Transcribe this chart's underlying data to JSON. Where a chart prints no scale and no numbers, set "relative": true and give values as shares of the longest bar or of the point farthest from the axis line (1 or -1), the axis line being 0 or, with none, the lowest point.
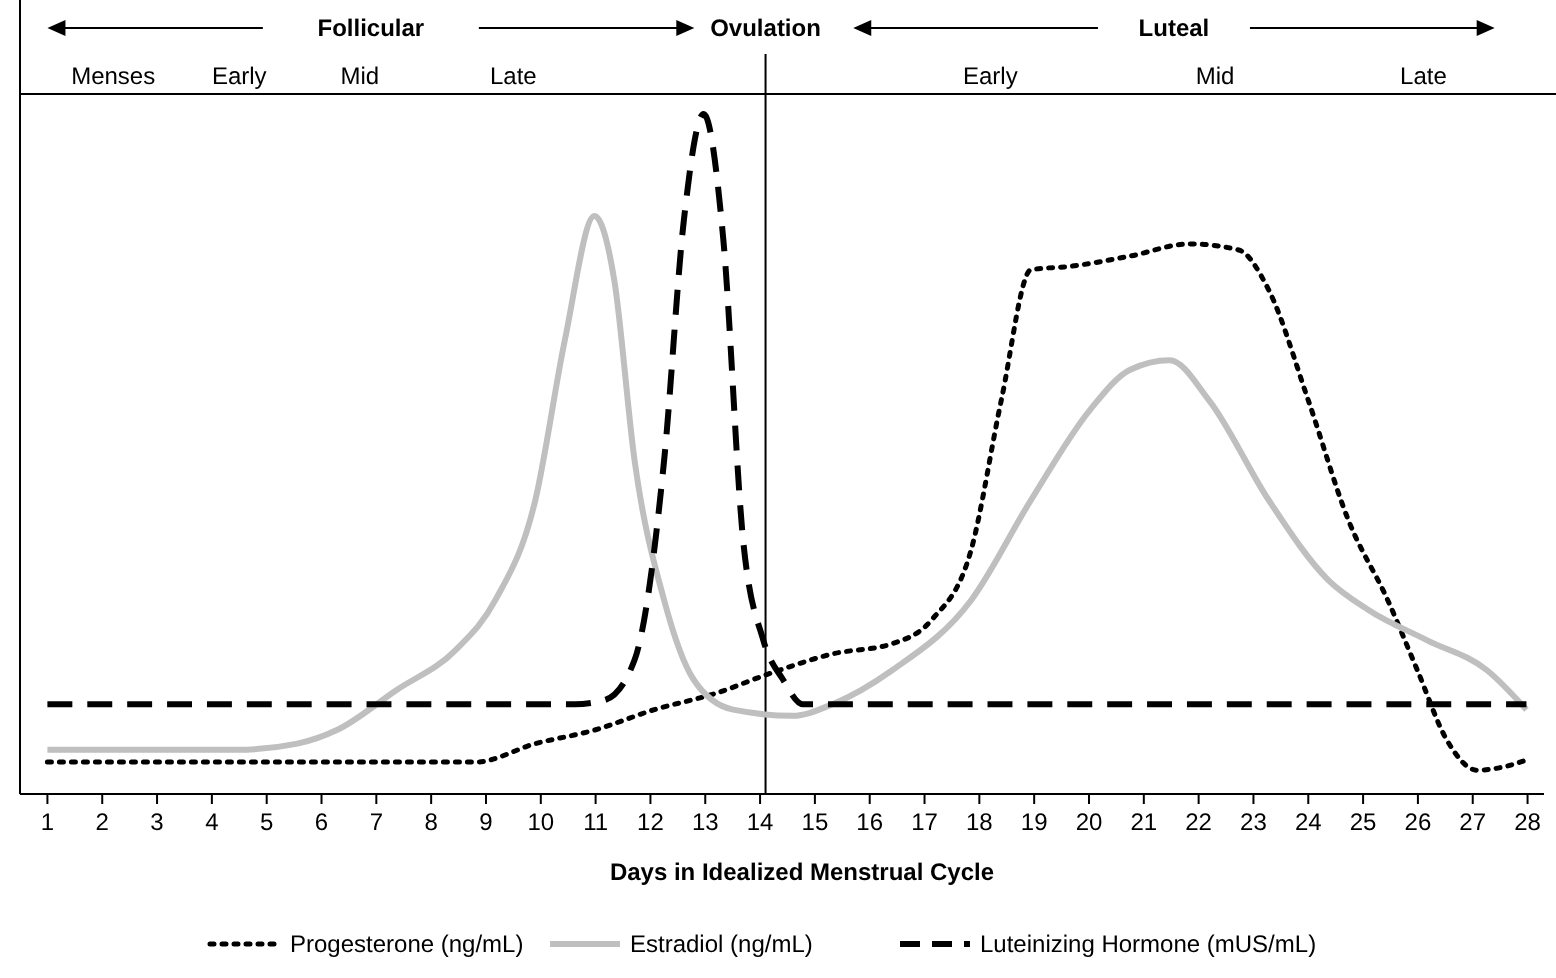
{
  "chart_data": {
    "type": "line",
    "relative": true,
    "xlabel": "Days in Idealized Menstrual Cycle",
    "xlim": [
      0.5,
      28.3
    ],
    "xticks": [
      1,
      2,
      3,
      4,
      5,
      6,
      7,
      8,
      9,
      10,
      11,
      12,
      13,
      14,
      15,
      16,
      17,
      18,
      19,
      20,
      21,
      22,
      23,
      24,
      25,
      26,
      27,
      28
    ],
    "grid": false,
    "legend": "bottom",
    "series": [
      {
        "name": "Progesterone (ng/mL)",
        "color": "#000000",
        "line_style": "dotted",
        "x": [
          1,
          8.81,
          9.9,
          10.98,
          12.07,
          13.15,
          14.24,
          15.32,
          16.41,
          17.13,
          17.85,
          18.4,
          18.94,
          19.66,
          20.75,
          21.83,
          22.73,
          23.28,
          24.0,
          24.73,
          25.45,
          25.99,
          26.53,
          27.08,
          27.62,
          27.98
        ],
        "values": [
          0.047,
          0.047,
          0.074,
          0.094,
          0.124,
          0.147,
          0.179,
          0.206,
          0.221,
          0.256,
          0.359,
          0.579,
          0.771,
          0.776,
          0.791,
          0.809,
          0.8,
          0.741,
          0.579,
          0.403,
          0.285,
          0.182,
          0.079,
          0.035,
          0.041,
          0.05
        ]
      },
      {
        "name": "Estradiol (ng/mL)",
        "color": "#bfbfbf",
        "line_style": "solid",
        "x": [
          1,
          4.47,
          5.56,
          6.28,
          7.37,
          8.45,
          9.17,
          9.9,
          10.44,
          10.98,
          11.34,
          11.71,
          12.25,
          12.79,
          13.51,
          14.6,
          15.32,
          16.41,
          17.85,
          18.94,
          20.02,
          20.75,
          21.47,
          22.19,
          23.28,
          24.36,
          25.09,
          26.17,
          27.26,
          27.98
        ],
        "values": [
          0.065,
          0.065,
          0.074,
          0.094,
          0.153,
          0.212,
          0.285,
          0.432,
          0.668,
          0.85,
          0.756,
          0.491,
          0.285,
          0.168,
          0.124,
          0.115,
          0.132,
          0.182,
          0.285,
          0.432,
          0.565,
          0.624,
          0.638,
          0.579,
          0.432,
          0.315,
          0.271,
          0.226,
          0.182,
          0.124
        ]
      },
      {
        "name": "Luteinizing Hormone  (mUS/mL)",
        "color": "#000000",
        "line_style": "dashed",
        "x": [
          1,
          10.62,
          11.16,
          11.71,
          12.25,
          12.61,
          12.97,
          13.33,
          13.69,
          14.06,
          14.42,
          14.78,
          27.98
        ],
        "values": [
          0.132,
          0.132,
          0.138,
          0.197,
          0.491,
          0.844,
          1,
          0.815,
          0.374,
          0.226,
          0.168,
          0.132,
          0.132
        ]
      }
    ],
    "ref_lines": [
      {
        "axis": "x",
        "value": 14.1,
        "label": "Ovulation",
        "color": "#000000"
      }
    ],
    "annotations": [
      "Follicular",
      "Luteal",
      "Menses",
      "Early",
      "Mid",
      "Late",
      "Early",
      "Mid",
      "Late"
    ]
  }
}
